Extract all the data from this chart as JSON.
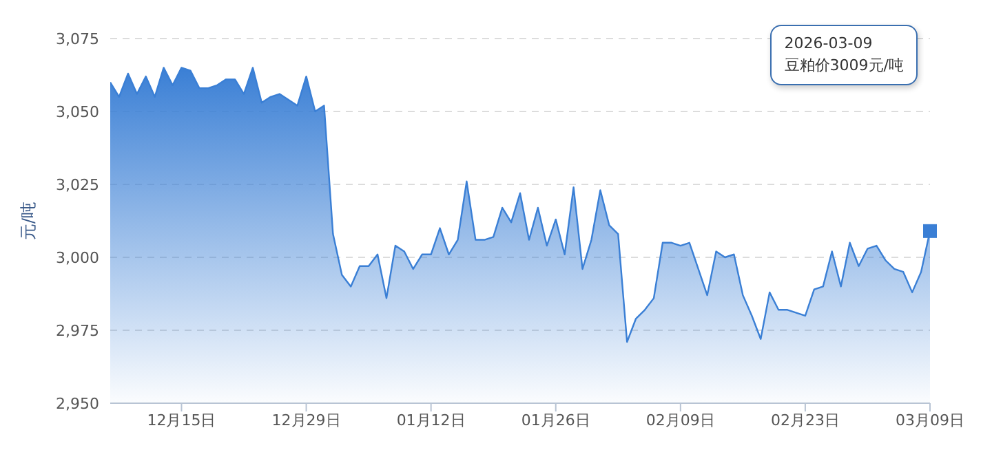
{
  "chart_data": {
    "type": "area",
    "ylabel": "元/吨",
    "x": [
      "2025-12-07",
      "2025-12-08",
      "2025-12-09",
      "2025-12-10",
      "2025-12-11",
      "2025-12-12",
      "2025-12-13",
      "2025-12-14",
      "2025-12-15",
      "2025-12-16",
      "2025-12-17",
      "2025-12-18",
      "2025-12-19",
      "2025-12-20",
      "2025-12-21",
      "2025-12-22",
      "2025-12-23",
      "2025-12-24",
      "2025-12-25",
      "2025-12-26",
      "2025-12-27",
      "2025-12-28",
      "2025-12-29",
      "2025-12-30",
      "2025-12-31",
      "2026-01-01",
      "2026-01-02",
      "2026-01-03",
      "2026-01-04",
      "2026-01-05",
      "2026-01-06",
      "2026-01-07",
      "2026-01-08",
      "2026-01-09",
      "2026-01-10",
      "2026-01-11",
      "2026-01-12",
      "2026-01-13",
      "2026-01-14",
      "2026-01-15",
      "2026-01-16",
      "2026-01-17",
      "2026-01-18",
      "2026-01-19",
      "2026-01-20",
      "2026-01-21",
      "2026-01-22",
      "2026-01-23",
      "2026-01-24",
      "2026-01-25",
      "2026-01-26",
      "2026-01-27",
      "2026-01-28",
      "2026-01-29",
      "2026-01-30",
      "2026-01-31",
      "2026-02-01",
      "2026-02-02",
      "2026-02-03",
      "2026-02-04",
      "2026-02-05",
      "2026-02-06",
      "2026-02-07",
      "2026-02-08",
      "2026-02-09",
      "2026-02-10",
      "2026-02-11",
      "2026-02-12",
      "2026-02-13",
      "2026-02-14",
      "2026-02-15",
      "2026-02-16",
      "2026-02-17",
      "2026-02-18",
      "2026-02-19",
      "2026-02-20",
      "2026-02-21",
      "2026-02-22",
      "2026-02-23",
      "2026-02-24",
      "2026-02-25",
      "2026-02-26",
      "2026-02-27",
      "2026-02-28",
      "2026-03-01",
      "2026-03-02",
      "2026-03-03",
      "2026-03-04",
      "2026-03-05",
      "2026-03-06",
      "2026-03-07",
      "2026-03-08",
      "2026-03-09"
    ],
    "series": [
      {
        "color": "#3a7fd5",
        "values": [
          3060,
          3055,
          3063,
          3056,
          3062,
          3055,
          3065,
          3059,
          3065,
          3064,
          3058,
          3058,
          3059,
          3061,
          3061,
          3056,
          3065,
          3053,
          3055,
          3056,
          3054,
          3052,
          3062,
          3050,
          3052,
          3008,
          2994,
          2990,
          2997,
          2997,
          3001,
          2986,
          3004,
          3002,
          2996,
          3001,
          3001,
          3010,
          3001,
          3006,
          3026,
          3006,
          3006,
          3007,
          3017,
          3012,
          3022,
          3006,
          3017,
          3004,
          3013,
          3001,
          3024,
          2996,
          3006,
          3023,
          3011,
          3008,
          2971,
          2979,
          2982,
          2986,
          3005,
          3005,
          3004,
          3005,
          2996,
          2987,
          3002,
          3000,
          3001,
          2987,
          2980,
          2972,
          2988,
          2982,
          2982,
          2981,
          2980,
          2989,
          2990,
          3002,
          2990,
          3005,
          2997,
          3003,
          3004,
          2999,
          2996,
          2995,
          2988,
          2995,
          3009
        ]
      }
    ],
    "xlim": [
      "2025-12-07",
      "2026-03-09"
    ],
    "xticks": [
      {
        "value": "2025-12-15",
        "label": "12月15日"
      },
      {
        "value": "2025-12-29",
        "label": "12月29日"
      },
      {
        "value": "2026-01-12",
        "label": "01月12日"
      },
      {
        "value": "2026-01-26",
        "label": "01月26日"
      },
      {
        "value": "2026-02-09",
        "label": "02月09日"
      },
      {
        "value": "2026-02-23",
        "label": "02月23日"
      },
      {
        "value": "2026-03-09",
        "label": "03月09日"
      }
    ],
    "ylim": [
      2950,
      3075
    ],
    "yticks": [
      {
        "value": 2950,
        "label": "2,950"
      },
      {
        "value": 2975,
        "label": "2,975"
      },
      {
        "value": 3000,
        "label": "3,000"
      },
      {
        "value": 3025,
        "label": "3,025"
      },
      {
        "value": 3050,
        "label": "3,050"
      },
      {
        "value": 3075,
        "label": "3,075"
      }
    ],
    "grid": "y",
    "legend": false,
    "marker": "none",
    "line_style": "solid",
    "annotations": [
      "2026-03-09\n豆粕价3009元/吨"
    ]
  }
}
